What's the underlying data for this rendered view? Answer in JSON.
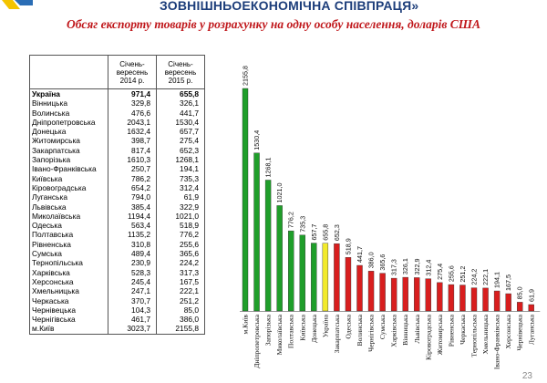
{
  "header": {
    "title": "ЗОВНІШНЬОЕКОНОМІЧНА СПІВПРАЦЯ»"
  },
  "subtitle": "Обсяг експорту товарів у розрахунку на одну особу населення, доларів США",
  "table": {
    "columns": [
      "",
      "Січень-вересень 2014 р.",
      "Січень-вересень 2015 р."
    ],
    "rows": [
      {
        "name": "Україна",
        "v2014": "971,4",
        "v2015": "655,8"
      },
      {
        "name": "Вінницька",
        "v2014": "329,8",
        "v2015": "326,1"
      },
      {
        "name": "Волинська",
        "v2014": "476,6",
        "v2015": "441,7"
      },
      {
        "name": "Дніпропетровська",
        "v2014": "2043,1",
        "v2015": "1530,4"
      },
      {
        "name": "Донецька",
        "v2014": "1632,4",
        "v2015": "657,7"
      },
      {
        "name": "Житомирська",
        "v2014": "398,7",
        "v2015": "275,4"
      },
      {
        "name": "Закарпатська",
        "v2014": "817,4",
        "v2015": "652,3"
      },
      {
        "name": "Запорізька",
        "v2014": "1610,3",
        "v2015": "1268,1"
      },
      {
        "name": "Івано-Франківська",
        "v2014": "250,7",
        "v2015": "194,1"
      },
      {
        "name": "Київська",
        "v2014": "786,2",
        "v2015": "735,3"
      },
      {
        "name": "Кіровоградська",
        "v2014": "654,2",
        "v2015": "312,4"
      },
      {
        "name": "Луганська",
        "v2014": "794,0",
        "v2015": "61,9"
      },
      {
        "name": "Львівська",
        "v2014": "385,4",
        "v2015": "322,9"
      },
      {
        "name": "Миколаївська",
        "v2014": "1194,4",
        "v2015": "1021,0"
      },
      {
        "name": "Одеська",
        "v2014": "563,4",
        "v2015": "518,9"
      },
      {
        "name": "Полтавська",
        "v2014": "1135,2",
        "v2015": "776,2"
      },
      {
        "name": "Рівненська",
        "v2014": "310,8",
        "v2015": "255,6"
      },
      {
        "name": "Сумська",
        "v2014": "489,4",
        "v2015": "365,6"
      },
      {
        "name": "Тернопільська",
        "v2014": "230,9",
        "v2015": "224,2"
      },
      {
        "name": "Харківська",
        "v2014": "528,3",
        "v2015": "317,3"
      },
      {
        "name": "Херсонська",
        "v2014": "245,4",
        "v2015": "167,5"
      },
      {
        "name": "Хмельницька",
        "v2014": "247,1",
        "v2015": "222,1"
      },
      {
        "name": "Черкаська",
        "v2014": "370,7",
        "v2015": "251,2"
      },
      {
        "name": "Чернівецька",
        "v2014": "104,3",
        "v2015": "85,0"
      },
      {
        "name": "Чернігівська",
        "v2014": "461,7",
        "v2015": "386,0"
      },
      {
        "name": "м.Київ",
        "v2014": "3023,7",
        "v2015": "2155,8"
      }
    ]
  },
  "chart_data": {
    "type": "bar",
    "categories": [
      "м.Київ",
      "Дніпропетровська",
      "Запорізька",
      "Миколаївська",
      "Полтавська",
      "Київська",
      "Донецька",
      "Україна",
      "Закарпатська",
      "Одеська",
      "Волинська",
      "Чернігівська",
      "Сумська",
      "Харківська",
      "Вінницька",
      "Львівська",
      "Кіровоградська",
      "Житомирська",
      "Рівненська",
      "Черкаська",
      "Тернопільська",
      "Хмельницька",
      "Івано-Франківська",
      "Херсонська",
      "Чернівецька",
      "Луганська"
    ],
    "values": [
      2155.8,
      1530.4,
      1268.1,
      1021.0,
      776.2,
      735.3,
      657.7,
      655.8,
      652.3,
      518.9,
      441.7,
      386.0,
      365.6,
      317.3,
      326.1,
      322.9,
      312.4,
      275.4,
      255.6,
      251.2,
      224.2,
      222.1,
      194.1,
      167.5,
      85.0,
      61.9
    ],
    "value_labels": [
      "2155,8",
      "1530,4",
      "1268,1",
      "1021,0",
      "776,2",
      "735,3",
      "657,7",
      "655,8",
      "652,3",
      "518,9",
      "441,7",
      "386,0",
      "365,6",
      "317,3",
      "326,1",
      "322,9",
      "312,4",
      "275,4",
      "255,6",
      "251,2",
      "224,2",
      "222,1",
      "194,1",
      "167,5",
      "85,0",
      "61,9"
    ],
    "bar_colors": [
      "#1f9e2a",
      "#1f9e2a",
      "#1f9e2a",
      "#1f9e2a",
      "#1f9e2a",
      "#1f9e2a",
      "#1f9e2a",
      "#f2ea2c",
      "#d81e1e",
      "#d81e1e",
      "#d81e1e",
      "#d81e1e",
      "#d81e1e",
      "#d81e1e",
      "#d81e1e",
      "#d81e1e",
      "#d81e1e",
      "#d81e1e",
      "#d81e1e",
      "#d81e1e",
      "#d81e1e",
      "#d81e1e",
      "#d81e1e",
      "#d81e1e",
      "#d81e1e",
      "#d81e1e"
    ],
    "ylim": [
      0,
      2200
    ],
    "grid": false,
    "legend": false
  },
  "page_number": "23"
}
